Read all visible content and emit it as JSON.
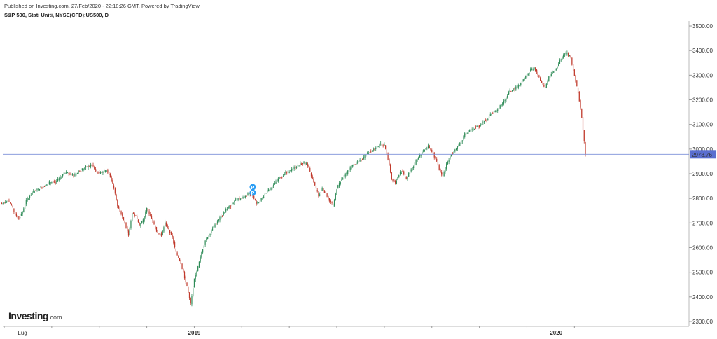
{
  "header": {
    "published": "Published on Investing.com, 27/Feb/2020 - 22:18:26 GMT, Powered by TradingView.",
    "title": "S&P 500, Stati Uniti, NYSE(CFD):US500, D"
  },
  "logo": {
    "name": "Investing",
    "suffix": ".com"
  },
  "colors": {
    "up": "#2e8b57",
    "down": "#c0392b",
    "last_line": "#7b8fd8",
    "last_label_bg": "#5b6fd0"
  },
  "chart_data": {
    "type": "candlestick",
    "ylim": [
      2280,
      3520
    ],
    "y_ticks": [
      "3500.00",
      "3400.00",
      "3300.00",
      "3200.00",
      "3100.00",
      "3000.00",
      "2900.00",
      "2800.00",
      "2700.00",
      "2600.00",
      "2500.00",
      "2400.00",
      "2300.00"
    ],
    "x_labels": [
      {
        "label": "Lug",
        "week": 5
      },
      {
        "label": "2019",
        "week": 52
      },
      {
        "label": "2020",
        "week": 151
      }
    ],
    "last_price": "2978.76",
    "weekly_closes": [
      2780,
      2790,
      2770,
      2735,
      2720,
      2745,
      2790,
      2810,
      2830,
      2835,
      2845,
      2850,
      2860,
      2870,
      2865,
      2880,
      2895,
      2905,
      2900,
      2890,
      2905,
      2915,
      2925,
      2930,
      2935,
      2915,
      2900,
      2910,
      2915,
      2890,
      2840,
      2770,
      2740,
      2700,
      2650,
      2740,
      2730,
      2690,
      2710,
      2760,
      2730,
      2690,
      2660,
      2650,
      2700,
      2670,
      2640,
      2580,
      2550,
      2500,
      2440,
      2370,
      2470,
      2520,
      2580,
      2630,
      2650,
      2680,
      2700,
      2720,
      2740,
      2760,
      2770,
      2790,
      2800,
      2800,
      2810,
      2820,
      2810,
      2780,
      2790,
      2810,
      2830,
      2840,
      2860,
      2880,
      2890,
      2905,
      2910,
      2920,
      2930,
      2940,
      2945,
      2935,
      2890,
      2850,
      2810,
      2840,
      2820,
      2790,
      2770,
      2840,
      2870,
      2890,
      2910,
      2930,
      2940,
      2950,
      2960,
      2980,
      2990,
      3000,
      3010,
      3020,
      3015,
      2960,
      2880,
      2860,
      2900,
      2910,
      2880,
      2910,
      2930,
      2960,
      2980,
      3000,
      3010,
      2990,
      2960,
      2920,
      2890,
      2940,
      2970,
      2990,
      3010,
      3030,
      3060,
      3070,
      3080,
      3090,
      3095,
      3110,
      3120,
      3140,
      3150,
      3160,
      3180,
      3200,
      3230,
      3240,
      3250,
      3260,
      3280,
      3300,
      3320,
      3330,
      3300,
      3270,
      3250,
      3290,
      3310,
      3330,
      3360,
      3380,
      3390,
      3370,
      3300,
      3230,
      3130,
      2978.76
    ]
  }
}
